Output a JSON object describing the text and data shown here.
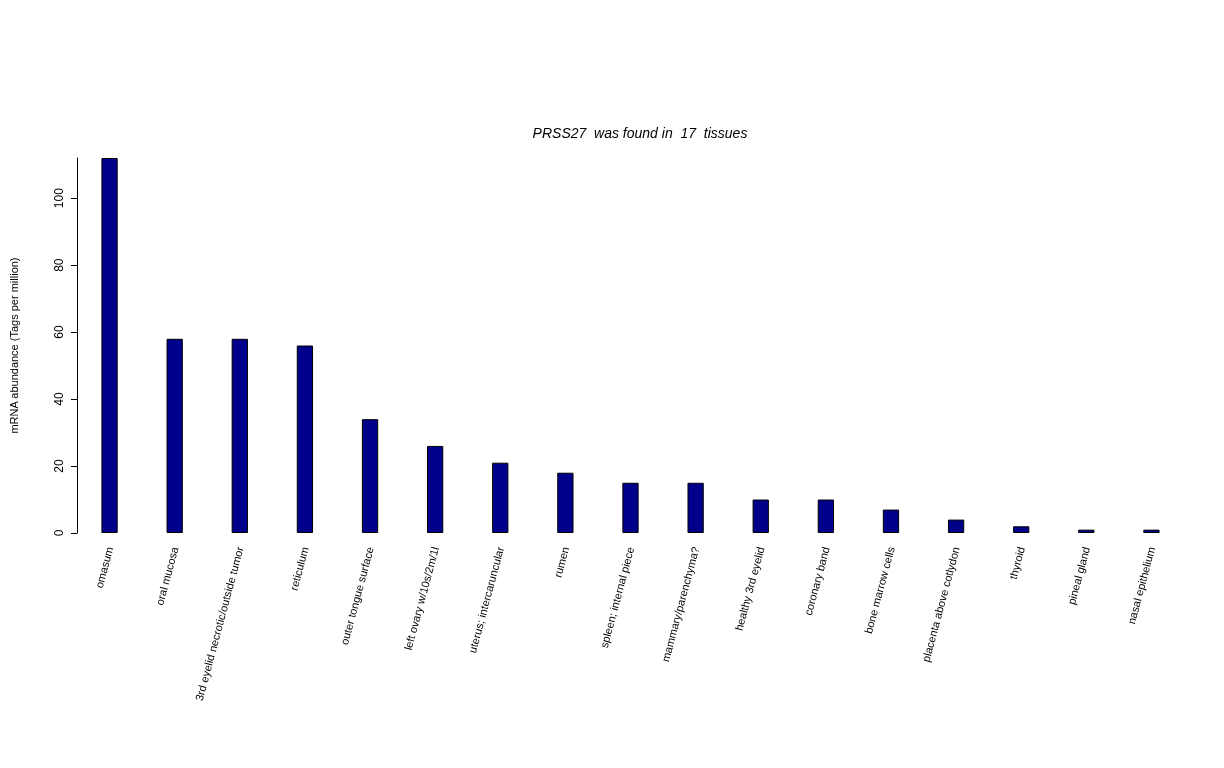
{
  "chart_data": {
    "type": "bar",
    "title": "PRSS27  was found in  17  tissues",
    "ylabel": "mRNA abundance (Tags per million)",
    "categories": [
      "omasum",
      "oral mucosa",
      "3rd eyelid necrotic/outside tumor",
      "reticulum",
      "outer tongue surface",
      "left ovary w/10s/2m/1l",
      "uterus; intercaruncular",
      "rumen",
      "spleen; internal piece",
      "mammary/parenchyma?",
      "healthy 3rd eyelid",
      "coronary band",
      "bone marrow cells",
      "placenta above cotlydon",
      "thyroid",
      "pineal gland",
      "nasal epithelium"
    ],
    "values": [
      112,
      58,
      58,
      56,
      34,
      26,
      21,
      18,
      15,
      15,
      10,
      10,
      7,
      4,
      2,
      1,
      1
    ],
    "color": "#00008b",
    "ylim": [
      0,
      112
    ],
    "yticks": [
      0,
      20,
      40,
      60,
      80,
      100
    ],
    "grid": false
  }
}
